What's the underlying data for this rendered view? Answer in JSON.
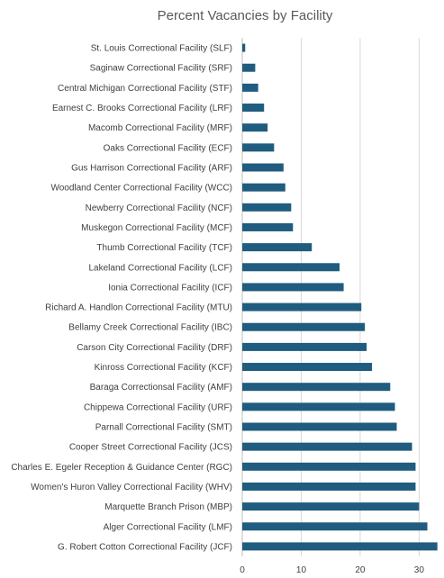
{
  "chart_data": {
    "type": "bar",
    "orientation": "horizontal",
    "title": "Percent Vacancies by Facility",
    "categories": [
      "St. Louis Correctional Facility (SLF)",
      "Saginaw Correctional Facility (SRF)",
      "Central Michigan Correctional Facility (STF)",
      "Earnest C. Brooks Correctional Facility (LRF)",
      "Macomb Correctional Facility (MRF)",
      "Oaks Correctional Facility (ECF)",
      "Gus Harrison Correctional Facility (ARF)",
      "Woodland Center Correctional Facility (WCC)",
      "Newberry Correctional Facility (NCF)",
      "Muskegon Correctional Facility (MCF)",
      "Thumb Correctional Facility (TCF)",
      "Lakeland Correctional Facility (LCF)",
      "Ionia Correctional Facility (ICF)",
      "Richard A. Handlon Correctional Facility (MTU)",
      "Bellamy Creek Correctional Facility (IBC)",
      "Carson City Correctional Facility (DRF)",
      "Kinross Correctional Facility (KCF)",
      "Baraga Correctionsal Facility (AMF)",
      "Chippewa Correctional Facility (URF)",
      "Parnall Correctional Facility (SMT)",
      "Cooper Street Correctional Facility (JCS)",
      "Charles E. Egeler Reception & Guidance Center (RGC)",
      "Women's Huron Valley Correctional Facility (WHV)",
      "Marquette Branch Prison (MBP)",
      "Alger Correctional Facility (LMF)",
      "G. Robert Cotton Correctional Facility (JCF)"
    ],
    "values": [
      0.5,
      2.2,
      2.7,
      3.7,
      4.3,
      5.4,
      7.0,
      7.3,
      8.3,
      8.6,
      11.8,
      16.5,
      17.2,
      20.2,
      20.8,
      21.1,
      22.0,
      25.1,
      25.9,
      26.2,
      28.8,
      29.4,
      29.4,
      30.0,
      31.4,
      33.1
    ],
    "xlim": [
      0,
      33
    ],
    "xticks": [
      0,
      10,
      20,
      30
    ],
    "grid": true,
    "bar_color": "#1f5c7f"
  }
}
